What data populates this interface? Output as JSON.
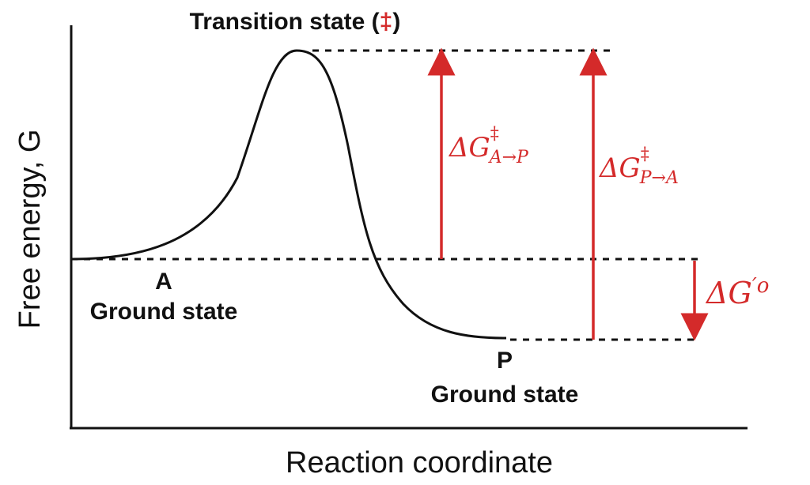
{
  "diagram": {
    "axes": {
      "y_label": "Free energy, G",
      "x_label": "Reaction coordinate"
    },
    "labels": {
      "transition_state_prefix": "Transition state (",
      "transition_state_symbol": "‡",
      "transition_state_suffix": ")",
      "reactant_letter": "A",
      "reactant_state": "Ground state",
      "product_letter": "P",
      "product_state": "Ground state"
    },
    "energy_labels": {
      "forward_activation": {
        "delta": "ΔG",
        "superscript": "‡",
        "subscript": "A→P"
      },
      "reverse_activation": {
        "delta": "ΔG",
        "superscript": "‡",
        "subscript": "P→A"
      },
      "standard_free_energy": {
        "delta": "ΔG",
        "prime_superscript": "′o"
      }
    },
    "colors": {
      "curve": "#111111",
      "axes": "#111111",
      "dashed_lines": "#111111",
      "arrows": "#d42a2a",
      "energy_text": "#d42a2a"
    }
  }
}
